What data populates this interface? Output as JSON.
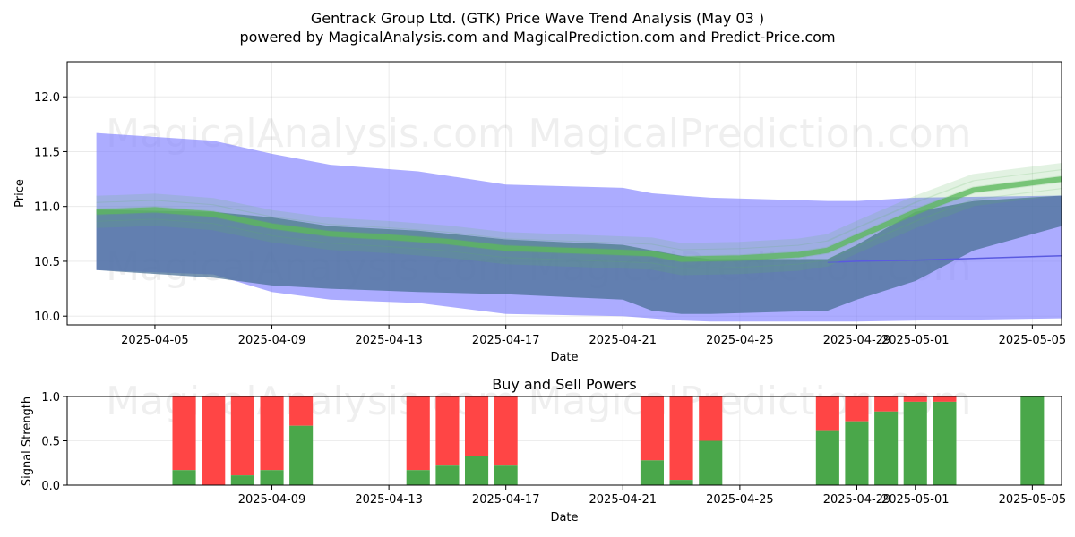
{
  "titles": {
    "main": "Gentrack Group Ltd. (GTK) Price Wave Trend Analysis (May 03 )",
    "sub": "powered by MagicalAnalysis.com and MagicalPrediction.com and Predict-Price.com"
  },
  "watermarks": [
    "MagicalAnalysis.com",
    "MagicalPrediction.com"
  ],
  "colors": {
    "band_blue": "#8080ff",
    "band_dark": "#4a7095",
    "green_wave": "#5cb85c",
    "buy": "#4aa74a",
    "sell": "#ff4545",
    "median_line": "#5a5ae0"
  },
  "chart_data": [
    {
      "type": "area",
      "title": "",
      "xlabel": "Date",
      "ylabel": "Price",
      "xlim": [
        "2025-04-02",
        "2025-05-06"
      ],
      "ylim": [
        9.92,
        12.32
      ],
      "x_ticks": [
        "2025-04-05",
        "2025-04-09",
        "2025-04-13",
        "2025-04-17",
        "2025-04-21",
        "2025-04-25",
        "2025-04-29",
        "2025-05-01",
        "2025-05-05"
      ],
      "y_ticks": [
        10.0,
        10.5,
        11.0,
        11.5,
        12.0
      ],
      "grid": true,
      "series": [
        {
          "kind": "outer_band",
          "x": [
            "2025-04-03",
            "2025-04-07",
            "2025-04-09",
            "2025-04-11",
            "2025-04-14",
            "2025-04-17",
            "2025-04-21",
            "2025-04-22",
            "2025-04-23",
            "2025-04-24",
            "2025-04-28",
            "2025-04-29",
            "2025-05-01",
            "2025-05-06"
          ],
          "upper": [
            11.67,
            11.6,
            11.48,
            11.38,
            11.32,
            11.2,
            11.17,
            11.12,
            11.1,
            11.08,
            11.05,
            11.05,
            11.08,
            11.1
          ],
          "lower": [
            10.42,
            10.38,
            10.22,
            10.15,
            10.12,
            10.02,
            10.0,
            9.98,
            9.96,
            9.95,
            9.95,
            9.95,
            9.96,
            9.98
          ]
        },
        {
          "kind": "inner_band",
          "x": [
            "2025-04-03",
            "2025-04-07",
            "2025-04-09",
            "2025-04-11",
            "2025-04-14",
            "2025-04-17",
            "2025-04-21",
            "2025-04-22",
            "2025-04-23",
            "2025-04-24",
            "2025-04-28",
            "2025-04-29",
            "2025-05-01",
            "2025-05-03",
            "2025-05-06"
          ],
          "upper": [
            10.97,
            10.95,
            10.9,
            10.82,
            10.78,
            10.7,
            10.65,
            10.6,
            10.55,
            10.52,
            10.52,
            10.65,
            10.95,
            11.05,
            11.1
          ],
          "lower": [
            10.42,
            10.35,
            10.28,
            10.25,
            10.22,
            10.2,
            10.15,
            10.05,
            10.02,
            10.02,
            10.05,
            10.15,
            10.32,
            10.6,
            10.82
          ]
        },
        {
          "kind": "median_line",
          "x": [
            "2025-04-28",
            "2025-04-29",
            "2025-05-01",
            "2025-05-06"
          ],
          "y": [
            10.49,
            10.5,
            10.51,
            10.55
          ]
        },
        {
          "kind": "green_wave",
          "x": [
            "2025-04-03",
            "2025-04-05",
            "2025-04-07",
            "2025-04-09",
            "2025-04-11",
            "2025-04-13",
            "2025-04-15",
            "2025-04-17",
            "2025-04-19",
            "2025-04-21",
            "2025-04-22",
            "2025-04-23",
            "2025-04-25",
            "2025-04-27",
            "2025-04-28",
            "2025-04-29",
            "2025-05-01",
            "2025-05-03",
            "2025-05-06"
          ],
          "y": [
            10.95,
            10.97,
            10.93,
            10.82,
            10.75,
            10.72,
            10.68,
            10.62,
            10.6,
            10.58,
            10.57,
            10.52,
            10.53,
            10.56,
            10.6,
            10.72,
            10.95,
            11.15,
            11.25
          ]
        }
      ]
    },
    {
      "type": "bar",
      "title": "Buy and Sell Powers",
      "xlabel": "Date",
      "ylabel": "Signal Strength",
      "xlim": [
        "2025-04-02",
        "2025-05-06"
      ],
      "ylim": [
        0,
        1.0
      ],
      "x_ticks": [
        "2025-04-09",
        "2025-04-13",
        "2025-04-17",
        "2025-04-21",
        "2025-04-25",
        "2025-04-29",
        "2025-05-01",
        "2025-05-05"
      ],
      "y_ticks": [
        0.0,
        0.5,
        1.0
      ],
      "y_tick_labels": [
        "0.0",
        "0.5",
        "1.0"
      ],
      "grid": true,
      "bars": [
        {
          "date": "2025-04-06",
          "buy": 0.17
        },
        {
          "date": "2025-04-07",
          "buy": 0.0
        },
        {
          "date": "2025-04-08",
          "buy": 0.11
        },
        {
          "date": "2025-04-09",
          "buy": 0.17
        },
        {
          "date": "2025-04-10",
          "buy": 0.67
        },
        {
          "date": "2025-04-14",
          "buy": 0.17
        },
        {
          "date": "2025-04-15",
          "buy": 0.22
        },
        {
          "date": "2025-04-16",
          "buy": 0.33
        },
        {
          "date": "2025-04-17",
          "buy": 0.22
        },
        {
          "date": "2025-04-22",
          "buy": 0.28
        },
        {
          "date": "2025-04-23",
          "buy": 0.06
        },
        {
          "date": "2025-04-24",
          "buy": 0.5
        },
        {
          "date": "2025-04-28",
          "buy": 0.61
        },
        {
          "date": "2025-04-29",
          "buy": 0.72
        },
        {
          "date": "2025-04-30",
          "buy": 0.83
        },
        {
          "date": "2025-05-01",
          "buy": 0.94
        },
        {
          "date": "2025-05-02",
          "buy": 0.94
        },
        {
          "date": "2025-05-05",
          "buy": 1.0
        }
      ]
    }
  ]
}
